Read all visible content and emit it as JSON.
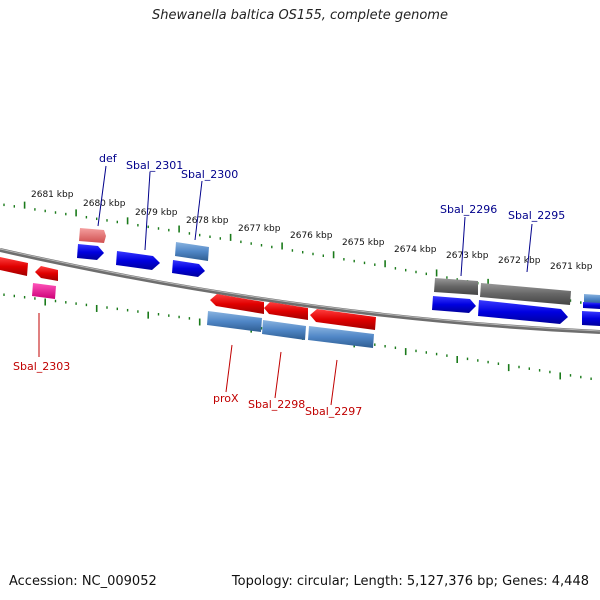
{
  "title": "Shewanella baltica OS155, complete genome",
  "footer": {
    "accession": "Accession: NC_009052",
    "topology": "Topology: circular; Length: 5,127,376 bp; Genes: 4,448"
  },
  "scale": {
    "ticks": [
      "2681 kbp",
      "2680 kbp",
      "2679 kbp",
      "2678 kbp",
      "2677 kbp",
      "2676 kbp",
      "2675 kbp",
      "2674 kbp",
      "2673 kbp",
      "2672 kbp",
      "2671 kbp"
    ]
  },
  "genes": {
    "forward_labels": [
      "def",
      "Sbal_2301",
      "Sbal_2300",
      "Sbal_2296",
      "Sbal_2295"
    ],
    "reverse_labels": [
      "Sbal_2303",
      "proX",
      "Sbal_2298",
      "Sbal_2297"
    ]
  },
  "colors": {
    "forward_gene": "#0000ee",
    "reverse_gene": "#ee0000",
    "forward_cds": "#4f86c6",
    "pseudo_gene": "#e87a7a",
    "misc_feature": "#ee2299",
    "grey_cds": "#666666",
    "scale_ticks": "#1a7a1a",
    "backbone": "#888888",
    "label_forward": "#00008b",
    "label_reverse": "#c00000"
  }
}
